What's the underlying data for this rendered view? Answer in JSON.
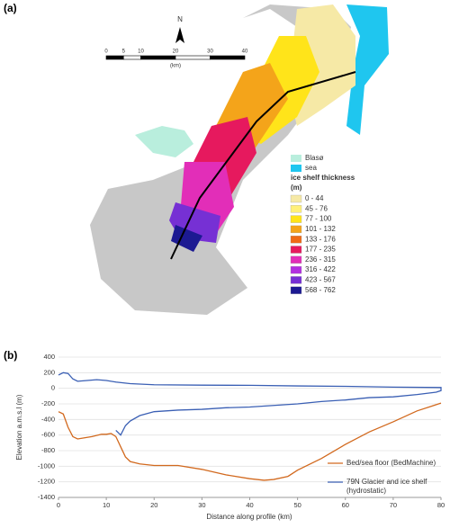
{
  "panel_a": {
    "label": "(a)",
    "north": "N",
    "scale_labels": [
      0,
      5,
      10,
      20,
      30,
      40
    ],
    "scale_unit": "(km)",
    "legend": [
      {
        "label": "Blasø",
        "color": "#b9eedd"
      },
      {
        "label": "sea",
        "color": "#1fc6ef"
      }
    ],
    "thickness_title": "ice shelf thickness",
    "thickness_unit": "(m)",
    "thickness_classes": [
      {
        "label": "0 - 44",
        "color": "#f6e9a6"
      },
      {
        "label": "45 - 76",
        "color": "#fff07a"
      },
      {
        "label": "77 - 100",
        "color": "#ffe41a"
      },
      {
        "label": "101 - 132",
        "color": "#f4a41a"
      },
      {
        "label": "133 - 176",
        "color": "#ef6a16"
      },
      {
        "label": "177 - 235",
        "color": "#e6195e"
      },
      {
        "label": "236 - 315",
        "color": "#e22eb8"
      },
      {
        "label": "316 - 422",
        "color": "#b230e0"
      },
      {
        "label": "423 - 567",
        "color": "#7630d4"
      },
      {
        "label": "568 - 762",
        "color": "#1c1a92"
      }
    ]
  },
  "chart_data": {
    "type": "line",
    "panel_label": "(b)",
    "x_label": "Distance along profile (km)",
    "y_label": "Elevation a.m.s.l (m)",
    "xlim": [
      0,
      80
    ],
    "xticks": [
      0,
      10,
      20,
      30,
      40,
      50,
      60,
      70,
      80
    ],
    "ylim": [
      -1400,
      400
    ],
    "yticks": [
      -1400,
      -1200,
      -1000,
      -800,
      -600,
      -400,
      -200,
      0,
      200,
      400
    ],
    "grid": true,
    "series": [
      {
        "name": "Bed/sea floor (BedMachine)",
        "color": "#d2691e",
        "x": [
          0,
          1,
          2,
          3,
          4,
          5,
          7,
          9,
          10,
          11,
          12,
          13,
          14,
          15,
          17,
          20,
          25,
          30,
          35,
          40,
          43,
          45,
          48,
          50,
          55,
          60,
          65,
          70,
          75,
          78,
          80
        ],
        "values": [
          -300,
          -330,
          -500,
          -620,
          -650,
          -640,
          -620,
          -590,
          -590,
          -580,
          -620,
          -750,
          -880,
          -940,
          -970,
          -990,
          -990,
          -1040,
          -1110,
          -1160,
          -1180,
          -1170,
          -1130,
          -1050,
          -900,
          -720,
          -560,
          -430,
          -290,
          -230,
          -190
        ]
      },
      {
        "name": "79N Glacier and ice shelf (hydrostatic)",
        "color": "#3a5fb4",
        "x": [
          0,
          1,
          2,
          3,
          4,
          6,
          8,
          10,
          12,
          15,
          20,
          30,
          40,
          50,
          60,
          70,
          80,
          80,
          79,
          75,
          70,
          65,
          60,
          55,
          50,
          45,
          40,
          35,
          30,
          25,
          20,
          17,
          15,
          14,
          13,
          12
        ],
        "values": [
          170,
          200,
          190,
          120,
          90,
          100,
          110,
          100,
          80,
          60,
          45,
          40,
          38,
          30,
          25,
          15,
          10,
          -30,
          -50,
          -80,
          -110,
          -120,
          -150,
          -170,
          -200,
          -220,
          -240,
          -250,
          -270,
          -280,
          -300,
          -350,
          -420,
          -480,
          -600,
          -540
        ]
      }
    ]
  }
}
